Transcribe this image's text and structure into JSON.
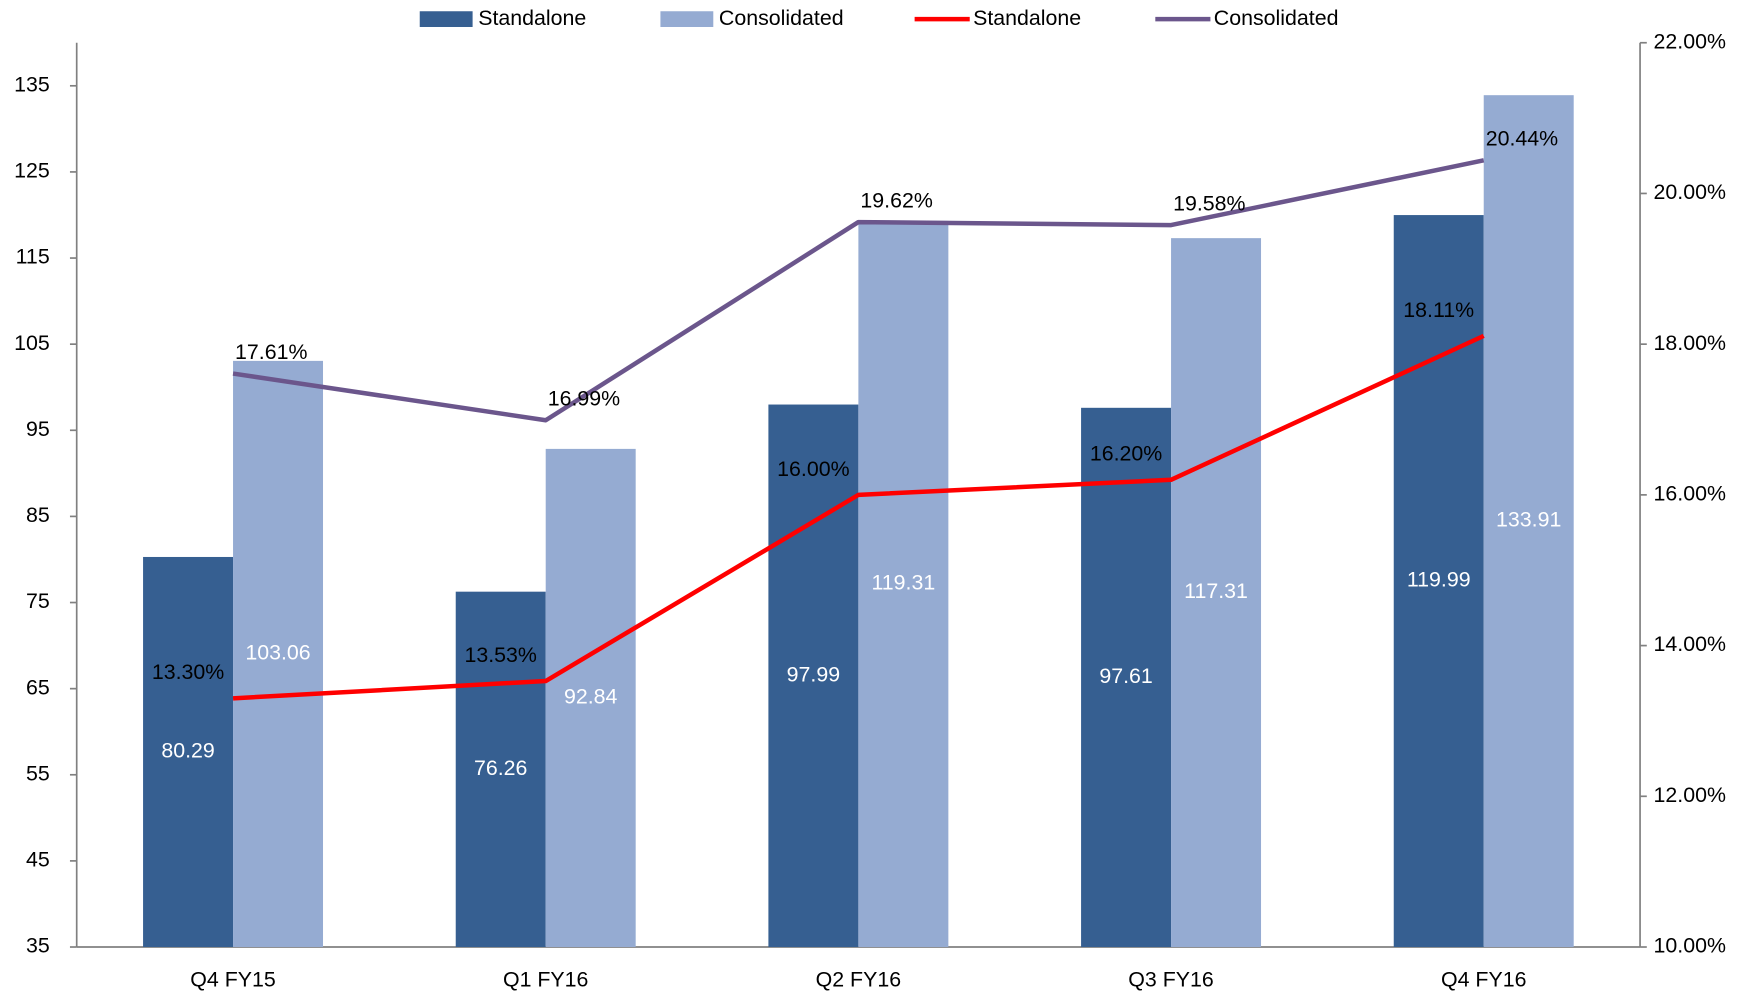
{
  "chart_data": {
    "type": "bar",
    "categories": [
      "Q4 FY15",
      "Q1 FY16",
      "Q2 FY16",
      "Q3 FY16",
      "Q4 FY16"
    ],
    "series": [
      {
        "name": "Standalone",
        "color": "#365f91",
        "values": [
          80.29,
          76.26,
          97.99,
          97.61,
          119.99
        ]
      },
      {
        "name": "Consolidated",
        "color": "#95abd2",
        "values": [
          103.06,
          92.84,
          119.31,
          117.31,
          133.91
        ]
      },
      {
        "name": "Standalone",
        "type": "line",
        "axis": "y2",
        "color": "#ff0000",
        "values": [
          13.3,
          13.53,
          16.0,
          16.2,
          18.11
        ],
        "value_labels": [
          "13.30%",
          "13.53%",
          "16.00%",
          "16.20%",
          "18.11%"
        ]
      },
      {
        "name": "Consolidated",
        "type": "line",
        "axis": "y2",
        "color": "#6b568c",
        "values": [
          17.61,
          16.99,
          19.62,
          19.58,
          20.44
        ],
        "value_labels": [
          "17.61%",
          "16.99%",
          "19.62%",
          "19.58%",
          "20.44%"
        ]
      }
    ],
    "ylim": [
      35,
      140
    ],
    "yticks": [
      35,
      45,
      55,
      65,
      75,
      85,
      95,
      105,
      115,
      125,
      135
    ],
    "y2lim": [
      10,
      22
    ],
    "y2ticks": [
      {
        "value": 10,
        "label": "10.00%"
      },
      {
        "value": 12,
        "label": "12.00%"
      },
      {
        "value": 14,
        "label": "14.00%"
      },
      {
        "value": 16,
        "label": "16.00%"
      },
      {
        "value": 18,
        "label": "18.00%"
      },
      {
        "value": 20,
        "label": "20.00%"
      },
      {
        "value": 22,
        "label": "22.00%"
      }
    ],
    "legend": "top",
    "grid": false
  }
}
